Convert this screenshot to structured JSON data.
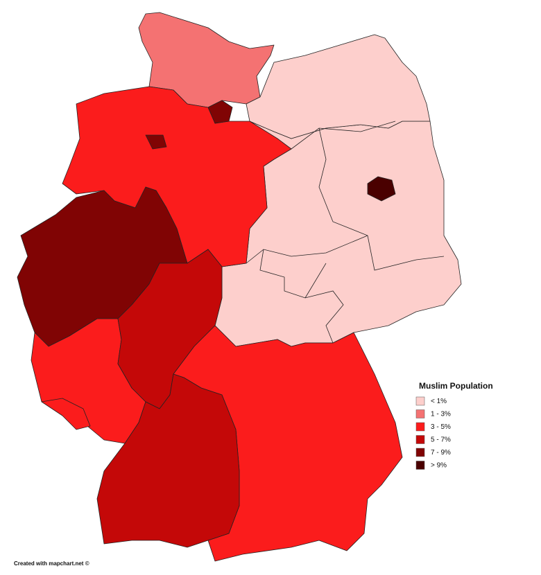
{
  "legend": {
    "title": "Muslim Population",
    "items": [
      {
        "label": "< 1%",
        "color": "#fdcfcc"
      },
      {
        "label": "1 - 3%",
        "color": "#f47272"
      },
      {
        "label": "3 - 5%",
        "color": "#fb1c1c"
      },
      {
        "label": "5 - 7%",
        "color": "#c40808"
      },
      {
        "label": "7 - 9%",
        "color": "#800404"
      },
      {
        "label": "> 9%",
        "color": "#4a0000"
      }
    ]
  },
  "credit": "Created with mapchart.net ©"
}
